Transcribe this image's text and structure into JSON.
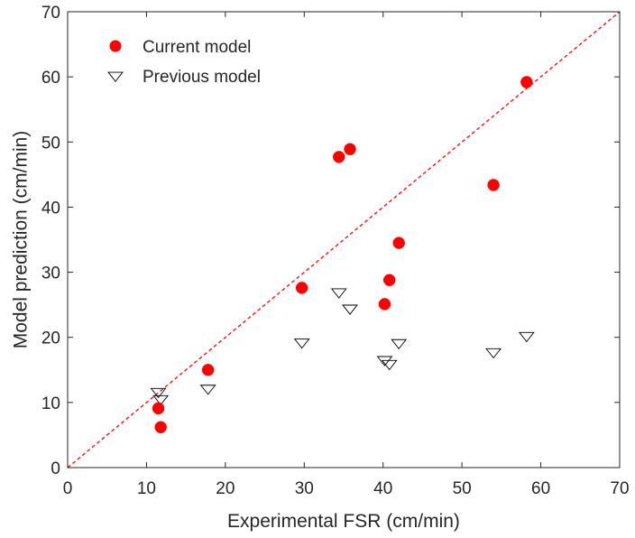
{
  "chart_data": {
    "type": "scatter",
    "title": "",
    "xlabel": "Experimental FSR (cm/min)",
    "ylabel": "Model prediction (cm/min)",
    "xlim": [
      0,
      70
    ],
    "ylim": [
      0,
      70
    ],
    "xticks": [
      0,
      10,
      20,
      30,
      40,
      50,
      60,
      70
    ],
    "yticks": [
      0,
      10,
      20,
      30,
      40,
      50,
      60,
      70
    ],
    "grid": false,
    "legend_position": "top-left",
    "reference_line": {
      "type": "y=x",
      "color": "#ff0000",
      "style": "dashed"
    },
    "series": [
      {
        "name": "Current model",
        "marker": "filled-circle",
        "color": "#ff0000",
        "points": [
          {
            "x": 11.5,
            "y": 9.1
          },
          {
            "x": 11.8,
            "y": 6.2
          },
          {
            "x": 17.8,
            "y": 15.0
          },
          {
            "x": 29.7,
            "y": 27.6
          },
          {
            "x": 34.4,
            "y": 47.7
          },
          {
            "x": 35.8,
            "y": 48.9
          },
          {
            "x": 40.2,
            "y": 25.1
          },
          {
            "x": 40.8,
            "y": 28.8
          },
          {
            "x": 42.0,
            "y": 34.5
          },
          {
            "x": 54.0,
            "y": 43.4
          },
          {
            "x": 58.2,
            "y": 59.2
          }
        ]
      },
      {
        "name": "Previous model",
        "marker": "open-down-triangle",
        "color": "#000000",
        "points": [
          {
            "x": 11.5,
            "y": 11.6
          },
          {
            "x": 11.8,
            "y": 10.5
          },
          {
            "x": 17.8,
            "y": 12.1
          },
          {
            "x": 29.7,
            "y": 19.2
          },
          {
            "x": 34.4,
            "y": 26.9
          },
          {
            "x": 35.8,
            "y": 24.4
          },
          {
            "x": 40.2,
            "y": 16.5
          },
          {
            "x": 40.8,
            "y": 15.9
          },
          {
            "x": 42.0,
            "y": 19.1
          },
          {
            "x": 54.0,
            "y": 17.7
          },
          {
            "x": 58.2,
            "y": 20.2
          }
        ]
      }
    ]
  }
}
